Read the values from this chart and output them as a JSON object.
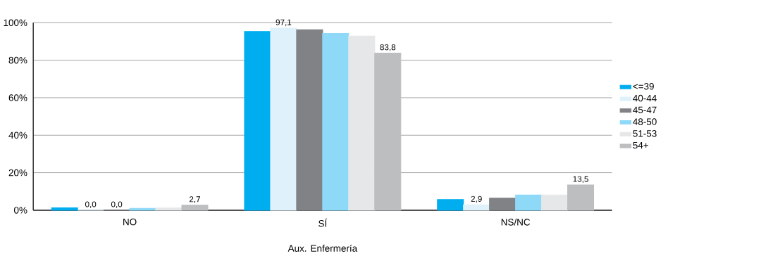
{
  "chart_data": {
    "type": "bar",
    "xlabel": "Aux. Enfermería",
    "categories": [
      "NO",
      "SÍ",
      "NS/NC"
    ],
    "series": [
      {
        "name": "<=39",
        "color": "#00aeef",
        "values": [
          1.3,
          95.3,
          5.7
        ]
      },
      {
        "name": "40-44",
        "color": "#dff1fa",
        "values": [
          0.0,
          97.1,
          2.9
        ],
        "value_labels": [
          "0,0",
          "97,1",
          "2,9"
        ]
      },
      {
        "name": "45-47",
        "color": "#808285",
        "values": [
          0.0,
          96.3,
          6.4
        ],
        "value_labels": [
          "0,0",
          null,
          null
        ]
      },
      {
        "name": "48-50",
        "color": "#8ed8f8",
        "values": [
          1.0,
          94.3,
          8.1
        ]
      },
      {
        "name": "51-53",
        "color": "#e6e7e8",
        "values": [
          1.2,
          92.9,
          8.1
        ]
      },
      {
        "name": "54+",
        "color": "#bcbec0",
        "values": [
          2.7,
          83.8,
          13.5
        ],
        "value_labels": [
          "2,7",
          "83,8",
          "13,5"
        ]
      }
    ],
    "ylim": [
      0,
      100
    ],
    "yticks": [
      {
        "value": 0,
        "label": "0%"
      },
      {
        "value": 20,
        "label": "20%"
      },
      {
        "value": 40,
        "label": "40%"
      },
      {
        "value": 60,
        "label": "60%"
      },
      {
        "value": 80,
        "label": "80%"
      },
      {
        "value": 100,
        "label": "100%"
      }
    ],
    "grid": "y",
    "legend": "right"
  }
}
